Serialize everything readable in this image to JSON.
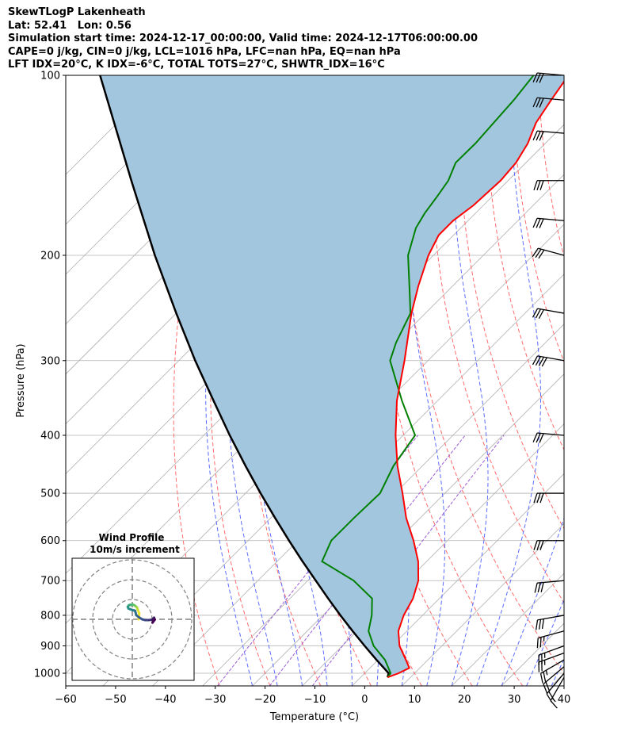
{
  "header": {
    "line1": "SkewTLogP Lakenheath",
    "line2": "Lat: 52.41   Lon: 0.56",
    "line3": "Simulation start time: 2024-12-17_00:00:00, Valid time: 2024-12-17T06:00:00.00",
    "line4": "CAPE=0 j/kg, CIN=0 j/kg, LCL=1016 hPa, LFC=nan hPa, EQ=nan hPa",
    "line5": "LFT IDX=20°C, K IDX=-6°C, TOTAL TOTS=27°C, SHWTR_IDX=16°C"
  },
  "chart_data": {
    "type": "line",
    "xlabel": "Temperature (°C)",
    "ylabel": "Pressure (hPa)",
    "x_ticks": [
      -60,
      -50,
      -40,
      -30,
      -20,
      -10,
      0,
      10,
      20,
      30,
      40
    ],
    "x_tick_labels": [
      "−60",
      "−50",
      "−40",
      "−30",
      "−20",
      "−10",
      "0",
      "10",
      "20",
      "30",
      "40"
    ],
    "y_ticks": [
      100,
      200,
      300,
      400,
      500,
      600,
      700,
      800,
      900,
      1000
    ],
    "y_tick_labels": [
      "100",
      "200",
      "300",
      "400",
      "500",
      "600",
      "700",
      "800",
      "900",
      "1000"
    ],
    "xlim": [
      -60,
      40
    ],
    "ylim": [
      1050,
      100
    ],
    "log_y": true,
    "skew": true,
    "grid": true,
    "colors": {
      "temperature": "#ff0000",
      "dewpoint": "#008000",
      "parcel": "#000000",
      "fill": "#a3c6df",
      "dry_adiabats": "#ff6b6b",
      "moist_adiabats": "#5b6cff",
      "mixing_ratio": "#9b5bd6",
      "isotherms": "#b0b0b0"
    },
    "series": [
      {
        "key": "temperature",
        "pressure": [
          1016,
          1000,
          980,
          950,
          900,
          850,
          800,
          750,
          700,
          650,
          600,
          550,
          500,
          450,
          400,
          350,
          300,
          250,
          225,
          200,
          185,
          175,
          165,
          150,
          140,
          130,
          120,
          110,
          100
        ],
        "temp": [
          5.4,
          6.8,
          7.9,
          5.6,
          1.5,
          -1.7,
          -3.8,
          -5.3,
          -7.8,
          -11.7,
          -16.8,
          -22.8,
          -28.5,
          -35.0,
          -41.5,
          -48.2,
          -54.7,
          -62.8,
          -66.9,
          -71.0,
          -73.0,
          -73.0,
          -72.0,
          -71.5,
          -72.0,
          -73.5,
          -76.0,
          -77.5,
          -79.0
        ]
      },
      {
        "key": "dewpoint",
        "pressure": [
          1016,
          1000,
          980,
          950,
          900,
          850,
          800,
          750,
          700,
          650,
          600,
          550,
          500,
          450,
          400,
          350,
          300,
          280,
          250,
          230,
          200,
          180,
          170,
          160,
          150,
          140,
          130,
          110,
          100
        ],
        "temp": [
          5.4,
          5.2,
          3.7,
          1.4,
          -3.7,
          -7.7,
          -10.2,
          -13.5,
          -20.8,
          -31.0,
          -33.3,
          -33.3,
          -33.0,
          -35.8,
          -37.6,
          -47.2,
          -57.6,
          -60.0,
          -63.0,
          -67.5,
          -75.1,
          -79.0,
          -80.2,
          -81.0,
          -82.0,
          -84.1,
          -84.0,
          -85.0,
          -86.0
        ]
      },
      {
        "key": "parcel",
        "pressure": [
          1016,
          1000,
          950,
          900,
          850,
          800,
          750,
          700,
          650,
          600,
          550,
          500,
          450,
          400,
          350,
          300,
          250,
          200,
          150,
          100
        ],
        "temp": [
          5.4,
          4.8,
          -0.3,
          -5.5,
          -10.9,
          -16.5,
          -22.3,
          -28.4,
          -34.9,
          -41.8,
          -49.1,
          -57.0,
          -65.5,
          -74.8,
          -85.0,
          -96.7,
          -110.0,
          -125.9,
          -145.6,
          -173.0
        ]
      }
    ],
    "wind_barbs": {
      "pressure": [
        1016,
        1000,
        975,
        950,
        925,
        900,
        850,
        800,
        700,
        600,
        500,
        400,
        300,
        250,
        200,
        175,
        150,
        125,
        110,
        100
      ],
      "speed_kt": [
        15,
        20,
        20,
        25,
        25,
        25,
        25,
        30,
        30,
        30,
        30,
        30,
        40,
        30,
        30,
        30,
        30,
        30,
        30,
        30
      ],
      "direction_deg": [
        210,
        220,
        230,
        240,
        250,
        250,
        255,
        260,
        265,
        270,
        270,
        275,
        280,
        280,
        285,
        275,
        270,
        275,
        275,
        275
      ]
    },
    "hodograph": {
      "title": "Wind Profile",
      "subtitle": "10m/s increment",
      "u": [
        3.2,
        3.5,
        2.7,
        2.4,
        1.8,
        1.5,
        0.8,
        0.0,
        -0.5,
        -1.2,
        -1.8,
        -2.3,
        -1.9,
        -0.9,
        0.0,
        1.4,
        2.0,
        3.5,
        5.0,
        6.5,
        8.2,
        10.0,
        11.0,
        10.4,
        11.4,
        10.2
      ],
      "v": [
        0.0,
        2.9,
        5.0,
        6.0,
        6.4,
        6.8,
        7.2,
        7.5,
        7.2,
        7.3,
        7.0,
        6.3,
        5.4,
        5.0,
        4.7,
        4.3,
        2.1,
        0.9,
        0.0,
        -0.4,
        -0.4,
        -0.2,
        0.8,
        -0.3,
        -0.1,
        -1.7
      ],
      "rings_ms": [
        10,
        20,
        30
      ],
      "colormap": [
        "#440154",
        "#3b528b",
        "#21918c",
        "#5ec962",
        "#fde725"
      ]
    }
  }
}
